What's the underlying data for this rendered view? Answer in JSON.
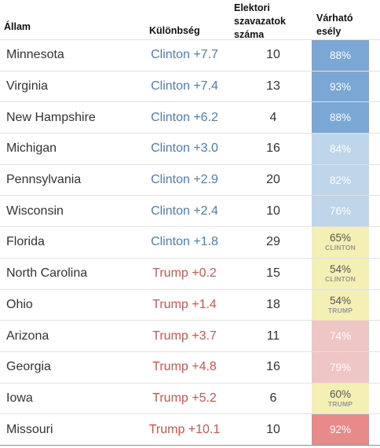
{
  "header": {
    "state": "Állam",
    "difference": "Különbség",
    "electoral_votes": "Elektori szavazatok száma",
    "probability": "Várható esély"
  },
  "colors": {
    "clinton_text": "#4a7fb5",
    "trump_text": "#d0554e",
    "solid_clinton": "#7aa7d6",
    "lean_clinton": "#bfd6ea",
    "tossup": "#f4f0b4",
    "lean_trump": "#efc6c6",
    "solid_trump": "#e88a8a"
  },
  "rows": [
    {
      "state": "Minnesota",
      "margin": "Clinton +7.7",
      "party": "clinton",
      "ev": "10",
      "prob": "88%",
      "sub": "",
      "shade": "solid_clinton"
    },
    {
      "state": "Virginia",
      "margin": "Clinton +7.4",
      "party": "clinton",
      "ev": "13",
      "prob": "93%",
      "sub": "",
      "shade": "solid_clinton"
    },
    {
      "state": "New Hampshire",
      "margin": "Clinton +6.2",
      "party": "clinton",
      "ev": "4",
      "prob": "88%",
      "sub": "",
      "shade": "solid_clinton"
    },
    {
      "state": "Michigan",
      "margin": "Clinton +3.0",
      "party": "clinton",
      "ev": "16",
      "prob": "84%",
      "sub": "",
      "shade": "lean_clinton"
    },
    {
      "state": "Pennsylvania",
      "margin": "Clinton +2.9",
      "party": "clinton",
      "ev": "20",
      "prob": "82%",
      "sub": "",
      "shade": "lean_clinton"
    },
    {
      "state": "Wisconsin",
      "margin": "Clinton +2.4",
      "party": "clinton",
      "ev": "10",
      "prob": "76%",
      "sub": "",
      "shade": "lean_clinton"
    },
    {
      "state": "Florida",
      "margin": "Clinton +1.8",
      "party": "clinton",
      "ev": "29",
      "prob": "65%",
      "sub": "CLINTON",
      "shade": "tossup"
    },
    {
      "state": "North Carolina",
      "margin": "Trump +0.2",
      "party": "trump",
      "ev": "15",
      "prob": "54%",
      "sub": "CLINTON",
      "shade": "tossup"
    },
    {
      "state": "Ohio",
      "margin": "Trump +1.4",
      "party": "trump",
      "ev": "18",
      "prob": "54%",
      "sub": "TRUMP",
      "shade": "tossup"
    },
    {
      "state": "Arizona",
      "margin": "Trump +3.7",
      "party": "trump",
      "ev": "11",
      "prob": "74%",
      "sub": "",
      "shade": "lean_trump"
    },
    {
      "state": "Georgia",
      "margin": "Trump +4.8",
      "party": "trump",
      "ev": "16",
      "prob": "79%",
      "sub": "",
      "shade": "lean_trump"
    },
    {
      "state": "Iowa",
      "margin": "Trump +5.2",
      "party": "trump",
      "ev": "6",
      "prob": "60%",
      "sub": "TRUMP",
      "shade": "tossup"
    },
    {
      "state": "Missouri",
      "margin": "Trump +10.1",
      "party": "trump",
      "ev": "10",
      "prob": "92%",
      "sub": "",
      "shade": "solid_trump"
    }
  ]
}
